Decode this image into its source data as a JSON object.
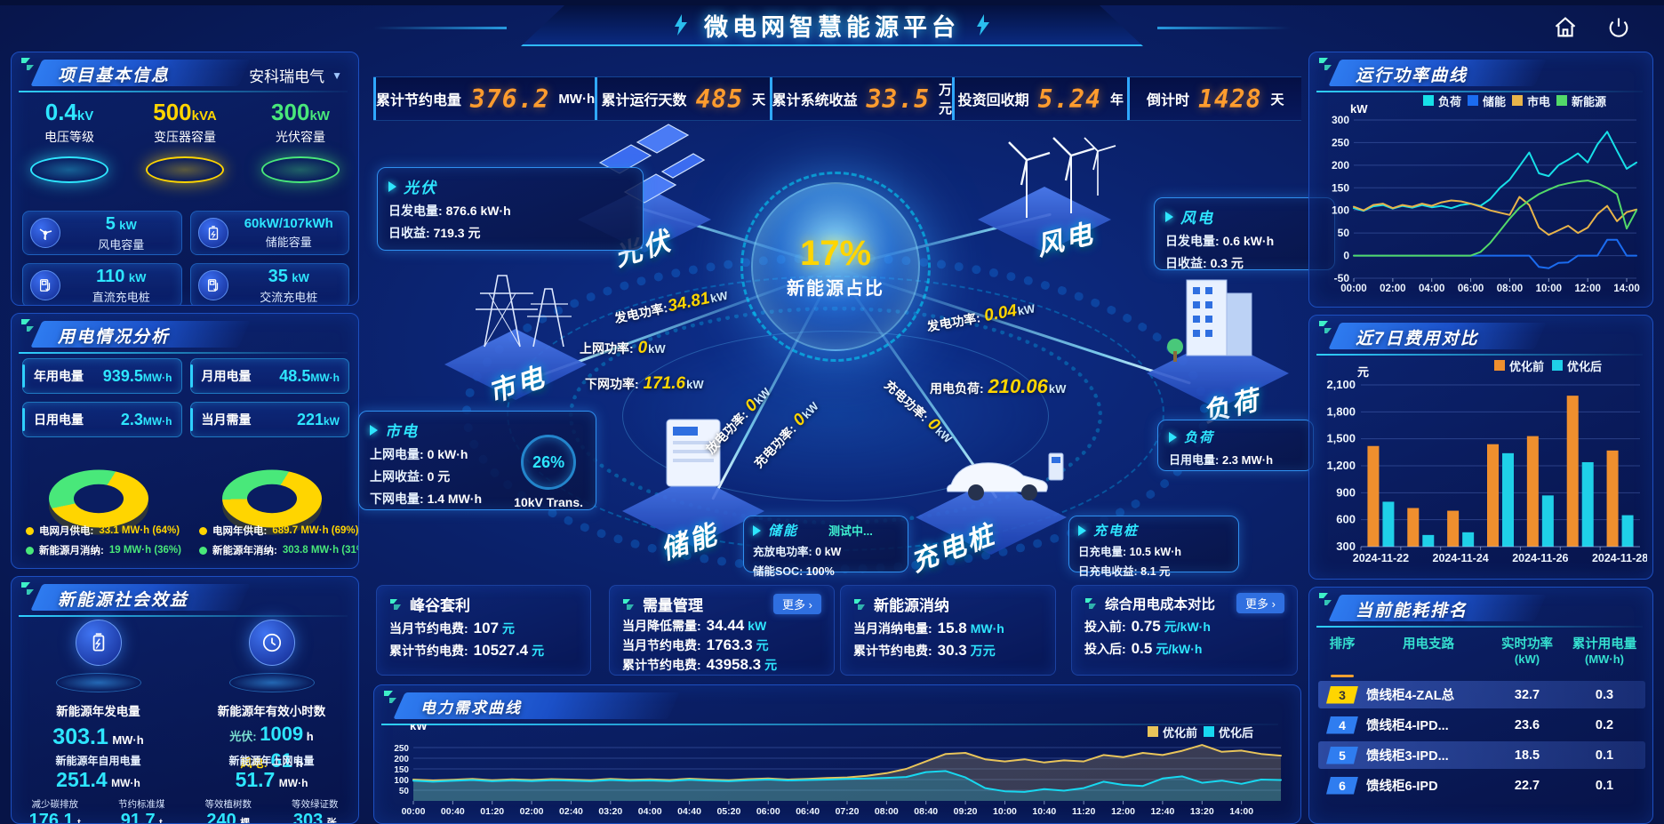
{
  "app": {
    "title": "微电网智慧能源平台"
  },
  "header_stats": [
    {
      "label": "累计节约电量",
      "value": "376.2",
      "unit": "MW·h"
    },
    {
      "label": "累计运行天数",
      "value": "485",
      "unit": "天"
    },
    {
      "label": "累计系统收益",
      "value": "33.5",
      "unit": "万元"
    },
    {
      "label": "投资回收期",
      "value": "5.24",
      "unit": "年"
    },
    {
      "label": "倒计时",
      "value": "1428",
      "unit": "天"
    }
  ],
  "left": {
    "project": {
      "title": "项目基本信息",
      "company": "安科瑞电气",
      "beacons": [
        {
          "value": "0.4",
          "unit": "kV",
          "label": "电压等级",
          "color": "#2ee6ff"
        },
        {
          "value": "500",
          "unit": "kVA",
          "label": "变压器容量",
          "color": "#ffd500"
        },
        {
          "value": "300",
          "unit": "kW",
          "label": "光伏容量",
          "color": "#49e87a"
        }
      ],
      "capacities": [
        {
          "value": "5",
          "unit": "kW",
          "label": "风电容量",
          "icon": "wind-icon"
        },
        {
          "value": "60kW/107kWh",
          "unit": "",
          "label": "储能容量",
          "icon": "battery-icon"
        },
        {
          "value": "110",
          "unit": "kW",
          "label": "直流充电桩",
          "icon": "dc-charger-icon"
        },
        {
          "value": "35",
          "unit": "kW",
          "label": "交流充电桩",
          "icon": "ac-charger-icon"
        }
      ]
    },
    "usage": {
      "title": "用电情况分析",
      "stats": [
        {
          "label": "年用电量",
          "value": "939.5",
          "unit": "MW·h"
        },
        {
          "label": "月用电量",
          "value": "48.5",
          "unit": "MW·h"
        },
        {
          "label": "日用电量",
          "value": "2.3",
          "unit": "MW·h"
        },
        {
          "label": "当月需量",
          "value": "221",
          "unit": "kW"
        }
      ],
      "donuts": [
        {
          "name": "month",
          "slices": [
            {
              "label": "电网月供电:",
              "display": "33.1 MW·h (64%)",
              "pct": 64,
              "color": "#ffd500"
            },
            {
              "label": "新能源月消纳:",
              "display": "19 MW·h (36%)",
              "pct": 36,
              "color": "#49e87a"
            }
          ]
        },
        {
          "name": "year",
          "slices": [
            {
              "label": "电网年供电:",
              "display": "689.7 MW·h (69%)",
              "pct": 69,
              "color": "#ffd500"
            },
            {
              "label": "新能源年消纳:",
              "display": "303.8 MW·h (31%)",
              "pct": 31,
              "color": "#49e87a"
            }
          ]
        }
      ]
    },
    "benefits": {
      "title": "新能源社会效益",
      "gen": {
        "label": "新能源年发电量",
        "value": "303.1",
        "unit": "MW·h"
      },
      "hours": {
        "label": "新能源年有效小时数",
        "pv_k": "光伏:",
        "pv_v": "1009",
        "pv_u": "h",
        "wind_k": "风电:",
        "wind_v": "61",
        "wind_u": "h"
      },
      "secondary": [
        {
          "label": "新能源年自用电量",
          "value": "251.4",
          "unit": "MW·h"
        },
        {
          "label": "新能源年上网电量",
          "value": "51.7",
          "unit": "MW·h"
        },
        {
          "label": "减少碳排放",
          "value": "176.1",
          "unit": "t"
        },
        {
          "label": "节约标准煤",
          "value": "91.7",
          "unit": "t"
        },
        {
          "label": "等效植树数",
          "value": "240",
          "unit": "棵"
        },
        {
          "label": "等效绿证数",
          "value": "303",
          "unit": "张"
        }
      ]
    }
  },
  "center": {
    "hub": {
      "pct": "17%",
      "label": "新能源占比"
    },
    "nodes": [
      {
        "name": "pv",
        "label": "光伏"
      },
      {
        "name": "grid",
        "label": "市电"
      },
      {
        "name": "storage",
        "label": "储能"
      },
      {
        "name": "wind",
        "label": "风电"
      },
      {
        "name": "load",
        "label": "负荷"
      },
      {
        "name": "charger",
        "label": "充电桩"
      }
    ],
    "flows": [
      {
        "label": "发电功率:",
        "value": "34.81",
        "unit": "kW"
      },
      {
        "label": "上网功率:",
        "value": "0",
        "unit": "kW"
      },
      {
        "label": "下网功率:",
        "value": "171.6",
        "unit": "kW"
      },
      {
        "label": "发电功率:",
        "value": "0.04",
        "unit": "kW"
      },
      {
        "label": "用电负荷:",
        "value": "210.06",
        "unit": "kW"
      },
      {
        "label": "充电功率:",
        "value": "0",
        "unit": "kW"
      },
      {
        "label": "放电功率:",
        "value": "0",
        "unit": "kW"
      },
      {
        "label": "充电功率:",
        "value": "0",
        "unit": "kW"
      }
    ],
    "gauge": {
      "pct": "26%",
      "label": "10kV Trans."
    },
    "info_boxes": {
      "pv": {
        "title": "光伏",
        "rows": [
          {
            "k": "日发电量:",
            "v": "876.6 kW·h"
          },
          {
            "k": "日收益:",
            "v": "719.3 元"
          }
        ]
      },
      "grid": {
        "title": "市电",
        "rows": [
          {
            "k": "上网电量:",
            "v": "0 kW·h"
          },
          {
            "k": "上网收益:",
            "v": "0 元"
          },
          {
            "k": "下网电量:",
            "v": "1.4 MW·h"
          }
        ]
      },
      "wind": {
        "title": "风电",
        "rows": [
          {
            "k": "日发电量:",
            "v": "0.6 kW·h"
          },
          {
            "k": "日收益:",
            "v": "0.3 元"
          }
        ]
      },
      "load": {
        "title": "负荷",
        "rows": [
          {
            "k": "日用电量:",
            "v": "2.3 MW·h"
          }
        ]
      },
      "storage": {
        "title": "储能",
        "tag": "测试中...",
        "rows": [
          {
            "k": "充放电功率:",
            "v": "0 kW"
          },
          {
            "k": "储能SOC:",
            "v": "100%"
          }
        ]
      },
      "charger": {
        "title": "充电桩",
        "rows": [
          {
            "k": "日充电量:",
            "v": "10.5 kW·h"
          },
          {
            "k": "日充电收益:",
            "v": "8.1 元"
          }
        ]
      }
    }
  },
  "cards": [
    {
      "title": "峰谷套利",
      "more": "",
      "rows": [
        {
          "k": "当月节约电费:",
          "v": "107",
          "u": "元"
        },
        {
          "k": "累计节约电费:",
          "v": "10527.4",
          "u": "元"
        }
      ]
    },
    {
      "title": "需量管理",
      "more": "更多",
      "rows": [
        {
          "k": "当月降低需量:",
          "v": "34.44",
          "u": "kW"
        },
        {
          "k": "当月节约电费:",
          "v": "1763.3",
          "u": "元"
        },
        {
          "k": "累计节约电费:",
          "v": "43958.3",
          "u": "元"
        }
      ]
    },
    {
      "title": "新能源消纳",
      "more": "",
      "rows": [
        {
          "k": "当月消纳电量:",
          "v": "15.8",
          "u": "MW·h"
        },
        {
          "k": "累计节约电费:",
          "v": "30.3",
          "u": "万元"
        }
      ]
    },
    {
      "title": "综合用电成本对比",
      "more": "更多",
      "rows": [
        {
          "k": "投入前:",
          "v": "0.75",
          "u": "元/kW·h"
        },
        {
          "k": "投入后:",
          "v": "0.5",
          "u": "元/kW·h"
        }
      ]
    }
  ],
  "right": {
    "power_panel_title": "运行功率曲线",
    "cost_panel_title": "近7日费用对比",
    "ranking": {
      "title": "当前能耗排名",
      "headers": [
        [
          "排序",
          ""
        ],
        [
          "用电支路",
          ""
        ],
        [
          "实时功率",
          "(kW)"
        ],
        [
          "累计用电量",
          "(MW·h)"
        ]
      ],
      "rows": [
        {
          "rank": "3",
          "branch": "馈线柜4-ZAL总",
          "power": "32.7",
          "energy": "0.3",
          "badge": "#ffd500",
          "badge_text": "#333",
          "highlight": true
        },
        {
          "rank": "4",
          "branch": "馈线柜4-IPD...",
          "power": "23.6",
          "energy": "0.2",
          "badge": "#2f7df0",
          "badge_text": "#fff",
          "highlight": false
        },
        {
          "rank": "5",
          "branch": "馈线柜3-IPD...",
          "power": "18.5",
          "energy": "0.1",
          "badge": "#2f7df0",
          "badge_text": "#fff",
          "highlight": true
        },
        {
          "rank": "6",
          "branch": "馈线柜6-IPD",
          "power": "22.7",
          "energy": "0.1",
          "badge": "#2f7df0",
          "badge_text": "#fff",
          "highlight": false
        }
      ]
    }
  },
  "bottom_chart_title": "电力需求曲线",
  "chart_data": [
    {
      "id": "power-curve",
      "type": "line",
      "title": "运行功率曲线",
      "ylabel": "kW",
      "ylim": [
        -50,
        300
      ],
      "yticks": [
        -50,
        0,
        50,
        100,
        150,
        200,
        250,
        300
      ],
      "x_span_hours": 14.5,
      "x_step_hours": 0.5,
      "xticklabels": [
        "00:00",
        "02:00",
        "04:00",
        "06:00",
        "08:00",
        "10:00",
        "12:00",
        "14:00"
      ],
      "legend_position": "top",
      "grid": true,
      "series": [
        {
          "name": "负荷",
          "color": "#17e0e8",
          "values": [
            105,
            99,
            109,
            112,
            104,
            110,
            106,
            112,
            107,
            110,
            105,
            112,
            115,
            110,
            125,
            150,
            168,
            198,
            228,
            182,
            176,
            200,
            212,
            226,
            206,
            246,
            274,
            232,
            192,
            206
          ]
        },
        {
          "name": "储能",
          "color": "#1b6cf0",
          "values": [
            0,
            0,
            0,
            0,
            0,
            0,
            0,
            0,
            0,
            0,
            0,
            0,
            0,
            0,
            0,
            0,
            0,
            0,
            0,
            -25,
            -28,
            -16,
            -15,
            0,
            0,
            0,
            35,
            35,
            0,
            0
          ]
        },
        {
          "name": "市电",
          "color": "#e8b44a",
          "values": [
            108,
            100,
            112,
            115,
            105,
            112,
            108,
            115,
            110,
            118,
            122,
            120,
            115,
            108,
            100,
            95,
            90,
            130,
            112,
            62,
            46,
            56,
            66,
            50,
            62,
            92,
            110,
            76,
            96,
            102
          ]
        },
        {
          "name": "新能源",
          "color": "#52d969",
          "values": [
            0,
            0,
            0,
            0,
            0,
            0,
            0,
            0,
            0,
            0,
            0,
            0,
            0,
            8,
            28,
            55,
            82,
            106,
            122,
            136,
            146,
            155,
            160,
            164,
            166,
            160,
            150,
            136,
            60,
            100
          ]
        }
      ]
    },
    {
      "id": "cost-compare",
      "type": "bar",
      "title": "近7日费用对比",
      "ylabel": "元",
      "ylim": [
        300,
        2100
      ],
      "yticks": [
        300,
        600,
        900,
        1200,
        1500,
        1800,
        2100
      ],
      "categories": [
        "2024-11-22",
        "2024-11-23",
        "2024-11-24",
        "2024-11-25",
        "2024-11-26",
        "2024-11-27",
        "2024-11-28"
      ],
      "xticklabels": [
        "2024-11-22",
        "2024-11-24",
        "2024-11-26",
        "2024-11-28"
      ],
      "legend_position": "top-right",
      "grid": true,
      "series": [
        {
          "name": "优化前",
          "color": "#ef8f2e",
          "values": [
            1420,
            730,
            700,
            1440,
            1530,
            1980,
            1370
          ]
        },
        {
          "name": "优化后",
          "color": "#1fd0e8",
          "values": [
            800,
            430,
            460,
            1340,
            870,
            1240,
            650
          ]
        }
      ]
    },
    {
      "id": "demand-curve",
      "type": "area",
      "title": "电力需求曲线",
      "ylabel": "kW",
      "ylim": [
        0,
        300
      ],
      "yticks": [
        50,
        100,
        150,
        200,
        250
      ],
      "x_span_hours": 14.67,
      "x_step_minutes": 20,
      "xticklabels": [
        "00:00",
        "00:40",
        "01:20",
        "02:00",
        "02:40",
        "03:20",
        "04:00",
        "04:40",
        "05:20",
        "06:00",
        "06:40",
        "07:20",
        "08:00",
        "08:40",
        "09:20",
        "10:00",
        "10:40",
        "11:20",
        "12:00",
        "12:40",
        "13:20",
        "14:00"
      ],
      "legend_position": "top-right",
      "grid": true,
      "series": [
        {
          "name": "优化前",
          "color": "#e8c45a",
          "values": [
            100,
            96,
            99,
            103,
            97,
            101,
            98,
            102,
            100,
            97,
            103,
            99,
            101,
            98,
            104,
            100,
            97,
            102,
            105,
            100,
            103,
            107,
            110,
            118,
            130,
            150,
            185,
            220,
            225,
            195,
            185,
            195,
            180,
            190,
            185,
            215,
            205,
            225,
            215,
            235,
            262,
            230,
            236,
            220,
            212
          ]
        },
        {
          "name": "优化后",
          "color": "#17d8f0",
          "values": [
            95,
            90,
            94,
            98,
            92,
            96,
            93,
            97,
            95,
            92,
            98,
            94,
            96,
            93,
            99,
            95,
            92,
            97,
            100,
            96,
            98,
            100,
            103,
            105,
            108,
            112,
            135,
            140,
            110,
            60,
            45,
            42,
            55,
            48,
            60,
            90,
            75,
            70,
            105,
            115,
            85,
            95,
            80,
            100,
            98
          ]
        }
      ]
    }
  ]
}
